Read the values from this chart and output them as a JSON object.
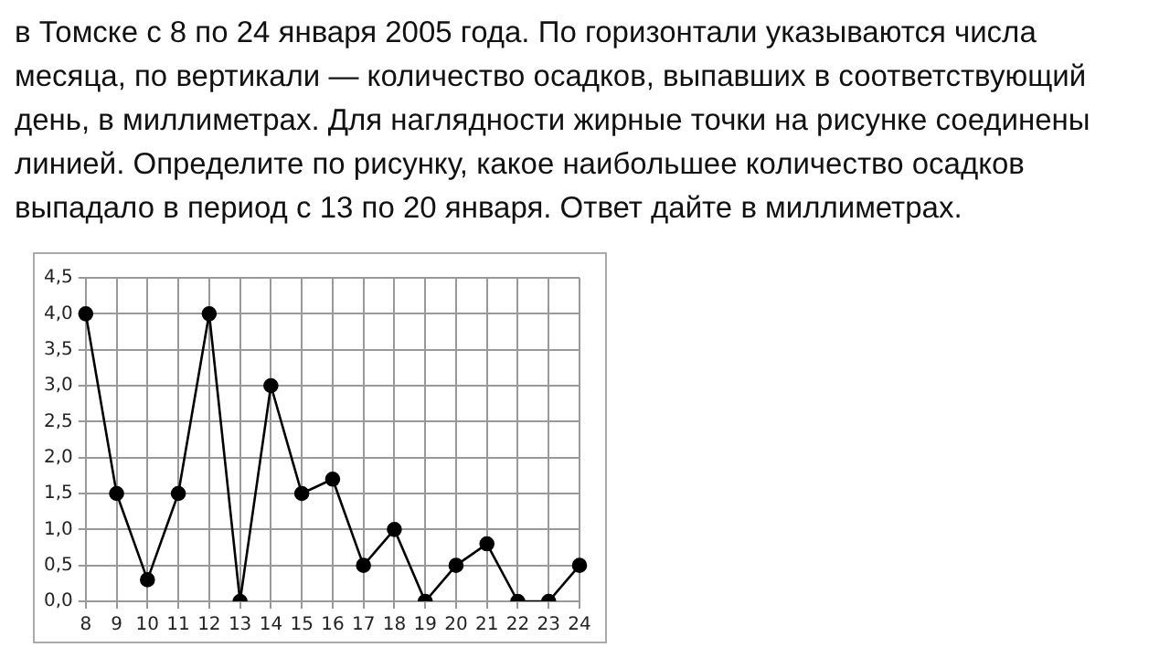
{
  "chart_data": {
    "type": "line",
    "annotations": [
      "в Томске с 8 по 24 января 2005 года. По горизонтали указываются числа месяца, по вертикали — количество осадков, выпавших в соответствующий день, в миллиметрах. Для наглядности жирные точки на рисунке соединены линией. Определите по рисунку, какое наибольшее количество осадков выпадало в период с 13 по 20 января. Ответ дайте в миллиметрах."
    ],
    "categories": [
      "8",
      "9",
      "10",
      "11",
      "12",
      "13",
      "14",
      "15",
      "16",
      "17",
      "18",
      "19",
      "20",
      "21",
      "22",
      "23",
      "24"
    ],
    "series": [
      {
        "color": "#000000",
        "values": [
          4.0,
          1.5,
          0.3,
          1.5,
          4.0,
          0,
          3.0,
          1.5,
          1.7,
          0.5,
          1.0,
          0,
          0.5,
          0.8,
          0,
          0,
          0.5
        ]
      }
    ],
    "ylim": [
      0,
      4.5
    ],
    "yticks": [
      {
        "value": 0,
        "label": "0,0"
      },
      {
        "value": 0.5,
        "label": "0,5"
      },
      {
        "value": 1,
        "label": "1,0"
      },
      {
        "value": 1.5,
        "label": "1,5"
      },
      {
        "value": 2,
        "label": "2,0"
      },
      {
        "value": 2.5,
        "label": "2,5"
      },
      {
        "value": 3,
        "label": "3,0"
      },
      {
        "value": 3.5,
        "label": "3,5"
      },
      {
        "value": 4,
        "label": "4,0"
      },
      {
        "value": 4.5,
        "label": "4,5"
      }
    ],
    "grid": true,
    "legend": false,
    "marker": "circle",
    "line_style": "solid"
  }
}
